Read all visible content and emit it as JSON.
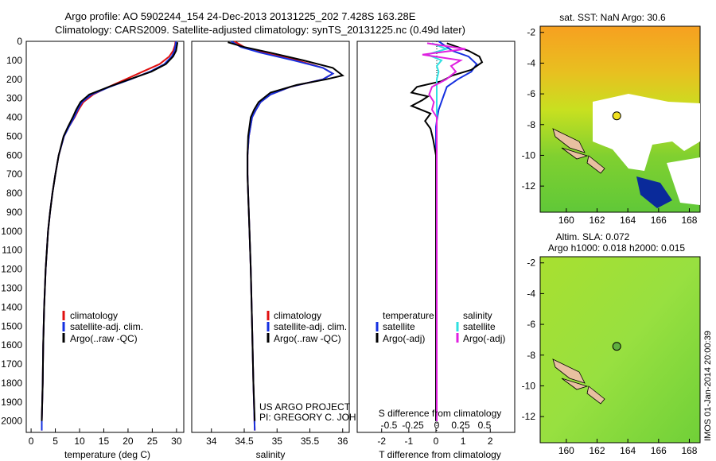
{
  "title_line1": "Argo profile: AO 5902244_154 24-Dec-2013 20131225_202 7.428S 163.28E",
  "title_line2": "Climatology: CARS2009. Satellite-adjusted climatology: synTS_20131225.nc (0.49d later)",
  "depth_ticks": [
    0,
    100,
    200,
    300,
    400,
    500,
    600,
    700,
    800,
    900,
    1000,
    1100,
    1200,
    1300,
    1400,
    1500,
    1600,
    1700,
    1800,
    1900,
    2000
  ],
  "colors": {
    "clim": "#e01010",
    "sat": "#1530e0",
    "argo": "#000000",
    "sat_sal": "#30e0e0",
    "argo_sal": "#e020e0"
  },
  "chart_data": [
    {
      "type": "line",
      "xlabel": "temperature (deg C)",
      "xlim": [
        -1,
        31.5
      ],
      "ylim": [
        0,
        2060
      ],
      "xticks": [
        0,
        5,
        10,
        15,
        20,
        25,
        30
      ],
      "legend": [
        "climatology",
        "satellite-adj. clim.",
        "Argo(..raw -QC)"
      ],
      "series": [
        {
          "name": "climatology",
          "color": "#e01010",
          "depth": [
            0,
            20,
            50,
            80,
            120,
            160,
            200,
            240,
            280,
            320,
            360,
            400,
            450,
            500,
            600,
            700,
            800,
            900,
            1000,
            1200,
            1400,
            1600,
            1800,
            2000,
            2050
          ],
          "values": [
            29.8,
            29.7,
            29.3,
            28.5,
            26.5,
            23.0,
            19.5,
            16.0,
            12.8,
            10.8,
            9.8,
            9.0,
            7.8,
            6.8,
            5.7,
            5.0,
            4.4,
            3.9,
            3.5,
            3.0,
            2.7,
            2.5,
            2.4,
            2.2,
            2.2
          ]
        },
        {
          "name": "satellite-adj. clim.",
          "color": "#1530e0",
          "depth": [
            0,
            20,
            50,
            80,
            120,
            160,
            200,
            240,
            280,
            320,
            360,
            400,
            450,
            500,
            600,
            700,
            800,
            900,
            1000,
            1200,
            1400,
            1600,
            1800,
            2000,
            2050
          ],
          "values": [
            29.9,
            29.8,
            29.6,
            29.0,
            27.5,
            24.5,
            20.5,
            16.2,
            12.5,
            10.5,
            9.6,
            8.9,
            7.8,
            6.8,
            5.7,
            5.0,
            4.4,
            3.9,
            3.5,
            3.0,
            2.7,
            2.5,
            2.4,
            2.2,
            2.2
          ]
        },
        {
          "name": "Argo(..raw -QC)",
          "color": "#000000",
          "depth": [
            5,
            20,
            50,
            80,
            120,
            160,
            200,
            240,
            280,
            320,
            360,
            400,
            450,
            500,
            600,
            700,
            800,
            900,
            1000,
            1200,
            1400,
            1600,
            1800,
            2000
          ],
          "values": [
            30.2,
            30.1,
            29.9,
            29.3,
            27.8,
            24.8,
            20.3,
            16.0,
            12.0,
            10.2,
            9.3,
            8.6,
            7.6,
            6.7,
            5.7,
            5.0,
            4.4,
            3.9,
            3.5,
            3.0,
            2.7,
            2.5,
            2.4,
            2.2
          ]
        }
      ]
    },
    {
      "type": "line",
      "xlabel": "salinity",
      "xlim": [
        33.7,
        36.1
      ],
      "ylim": [
        0,
        2060
      ],
      "xticks": [
        34,
        34.5,
        35,
        35.5,
        36
      ],
      "legend": [
        "climatology",
        "satellite-adj. clim.",
        "Argo(..raw -QC)"
      ],
      "series": [
        {
          "name": "climatology",
          "color": "#e01010",
          "depth": [
            0,
            30,
            60,
            100,
            140,
            170,
            200,
            240,
            280,
            320,
            360,
            400,
            500,
            600,
            700,
            800,
            1000,
            1200,
            1500,
            1800,
            2050
          ],
          "values": [
            34.35,
            34.5,
            34.8,
            35.3,
            35.7,
            35.85,
            35.7,
            35.2,
            34.9,
            34.75,
            34.68,
            34.62,
            34.57,
            34.55,
            34.55,
            34.56,
            34.58,
            34.6,
            34.62,
            34.64,
            34.66
          ]
        },
        {
          "name": "satellite-adj. clim.",
          "color": "#1530e0",
          "depth": [
            0,
            30,
            60,
            100,
            140,
            170,
            200,
            240,
            280,
            320,
            360,
            400,
            500,
            600,
            700,
            800,
            1000,
            1200,
            1500,
            1800,
            2050
          ],
          "values": [
            34.3,
            34.45,
            34.75,
            35.25,
            35.7,
            35.85,
            35.7,
            35.2,
            34.9,
            34.75,
            34.68,
            34.62,
            34.57,
            34.55,
            34.55,
            34.56,
            34.58,
            34.6,
            34.62,
            34.64,
            34.66
          ]
        },
        {
          "name": "Argo(..raw -QC)",
          "color": "#000000",
          "depth": [
            5,
            30,
            60,
            100,
            140,
            180,
            200,
            230,
            270,
            320,
            360,
            400,
            500,
            600,
            700,
            800,
            1000,
            1200,
            1500,
            1800,
            2000
          ],
          "values": [
            34.25,
            34.5,
            34.9,
            35.4,
            35.85,
            36.0,
            35.75,
            35.3,
            34.9,
            34.72,
            34.65,
            34.6,
            34.56,
            34.55,
            34.55,
            34.56,
            34.58,
            34.6,
            34.62,
            34.64,
            34.66
          ]
        }
      ]
    },
    {
      "type": "line",
      "xlabel": "T difference from climatology",
      "xlabel_top": "S difference from climatology",
      "xlim": [
        -2.9,
        2.9
      ],
      "ylim": [
        0,
        2060
      ],
      "xticks_T": [
        -2,
        -1,
        0,
        1,
        2
      ],
      "xticks_T_labels": [
        "-2",
        "-1",
        "0",
        "1",
        "2"
      ],
      "xticks_S": [
        -0.5,
        -0.25,
        0,
        0.25,
        0.5
      ],
      "xticks_S_labels": [
        "-0.5",
        "-0.25",
        "0",
        "0.25",
        "0.5"
      ],
      "legend_left_title": "temperature",
      "legend_right_title": "salinity",
      "legend": [
        "satellite",
        "Argo(-adj)",
        "satellite",
        "Argo(-adj)"
      ],
      "series": [
        {
          "name": "temperature satellite",
          "color": "#1530e0",
          "depth": [
            0,
            50,
            80,
            120,
            160,
            200,
            240,
            280,
            320,
            360,
            400,
            450,
            500,
            600,
            800,
            1000,
            1500,
            2000
          ],
          "values": [
            0.1,
            0.6,
            1.2,
            1.5,
            1.3,
            0.8,
            0.4,
            0.3,
            0.2,
            0.1,
            0.05,
            0.0,
            0.0,
            0.0,
            0.0,
            0.0,
            0.0,
            0.0
          ]
        },
        {
          "name": "temperature Argo(-adj)",
          "color": "#000000",
          "depth": [
            10,
            50,
            80,
            110,
            150,
            180,
            210,
            240,
            270,
            290,
            310,
            340,
            380,
            420,
            460,
            520,
            600,
            800,
            1000,
            1500,
            2000
          ],
          "values": [
            0.4,
            1.2,
            1.6,
            1.7,
            1.3,
            0.6,
            0.2,
            -0.7,
            -0.9,
            -0.3,
            -0.5,
            -0.9,
            -0.2,
            -0.4,
            -0.2,
            -0.1,
            0.0,
            0.0,
            0.0,
            0.0,
            0.0
          ]
        },
        {
          "name": "salinity satellite",
          "color": "#30e0e0",
          "depth": [
            10,
            40,
            70,
            100,
            130,
            160,
            200,
            240,
            280,
            320,
            400,
            500,
            700,
            1000,
            1500,
            2000
          ],
          "values": [
            -0.05,
            0.1,
            -0.1,
            0.05,
            0.0,
            0.02,
            0.0,
            0.0,
            0.0,
            0.0,
            0.0,
            0.0,
            0.0,
            0.0,
            0.0,
            0.0
          ]
        },
        {
          "name": "salinity Argo(-adj)",
          "color": "#e020e0",
          "depth": [
            10,
            40,
            70,
            100,
            130,
            160,
            200,
            240,
            280,
            320,
            360,
            400,
            500,
            700,
            1000,
            1500,
            2000
          ],
          "values": [
            -0.1,
            0.3,
            -0.15,
            0.25,
            0.15,
            0.2,
            0.1,
            -0.05,
            -0.08,
            -0.03,
            -0.05,
            0.0,
            0.0,
            0.0,
            0.0,
            0.0,
            0.0
          ]
        }
      ]
    }
  ],
  "pi_line1": "US ARGO PROJECT",
  "pi_line2": "PI: GREGORY C. JOHNSON",
  "map1_title": "sat. SST: NaN Argo: 30.6",
  "map2_title1": "Altim. SLA: 0.072",
  "map2_title2": "Argo h1000: 0.018 h2000: 0.015",
  "map_xticks": [
    160,
    162,
    164,
    166,
    168
  ],
  "map_yticks": [
    -2,
    -4,
    -6,
    -8,
    -10,
    -12
  ],
  "argo_lon": 163.28,
  "argo_lat": -7.428,
  "watermark": "IMOS 01-Jan-2014 20:00:39"
}
